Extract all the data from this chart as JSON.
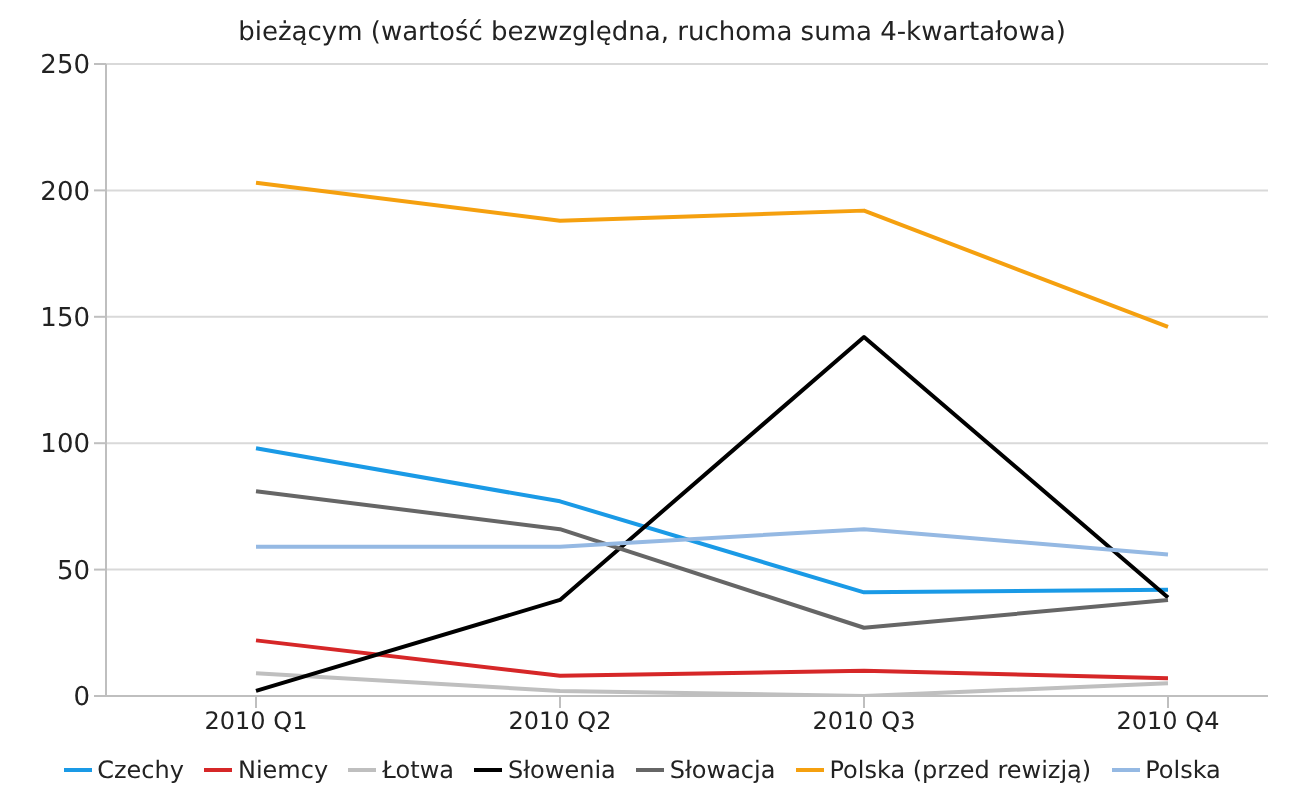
{
  "chart_data": {
    "type": "line",
    "title": "bieżącym (wartość bezwzględna, ruchoma suma 4-kwartałowa)",
    "categories": [
      "2010 Q1",
      "2010 Q2",
      "2010 Q3",
      "2010 Q4"
    ],
    "series": [
      {
        "name": "Czechy",
        "color": "#1a9ae6",
        "values": [
          98,
          77,
          41,
          42
        ]
      },
      {
        "name": "Niemcy",
        "color": "#d62728",
        "values": [
          22,
          8,
          10,
          7
        ]
      },
      {
        "name": "Łotwa",
        "color": "#bfbfbf",
        "values": [
          9,
          2,
          0,
          5
        ]
      },
      {
        "name": "Słowenia",
        "color": "#000000",
        "values": [
          2,
          38,
          142,
          39
        ]
      },
      {
        "name": "Słowacja",
        "color": "#666666",
        "values": [
          81,
          66,
          27,
          38
        ]
      },
      {
        "name": "Polska (przed rewizją)",
        "color": "#f5a00f",
        "values": [
          203,
          188,
          192,
          146
        ]
      },
      {
        "name": "Polska",
        "color": "#95b9e3",
        "values": [
          59,
          59,
          66,
          56
        ]
      }
    ],
    "ylim": [
      0,
      250
    ],
    "yticks": [
      0,
      50,
      100,
      150,
      200,
      250
    ],
    "grid": "y",
    "legend": "bottom",
    "marker": "none",
    "line_style": "solid"
  }
}
